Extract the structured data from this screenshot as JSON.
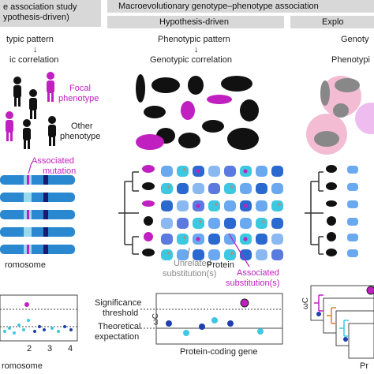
{
  "headers": {
    "left_line1": "e association study",
    "left_line2": "ypothesis-driven)",
    "macro": "Macroevolutionary genotype–phenotype association",
    "hypothesis": "Hypothesis-driven",
    "exploratory": "Explo"
  },
  "left_panel": {
    "pattern": "typic pattern",
    "arrow": "↓",
    "correlation": "ic correlation",
    "focal_line1": "Focal",
    "focal_line2": "phenotype",
    "other_line1": "Other",
    "other_line2": "phenotype",
    "assoc_line1": "Associated",
    "assoc_line2": "mutation",
    "chromosome": "romosome",
    "manhattan_axis": "romosome",
    "manhattan_ticks": [
      "2",
      "3",
      "4"
    ]
  },
  "middle_panel": {
    "pattern": "Phenotypic pattern",
    "arrow": "↓",
    "correlation": "Genotypic correlation",
    "unrelated_line1": "Unrelated",
    "unrelated_line2": "substitution(s)",
    "protein": "Protein",
    "associated_line1": "Associated",
    "associated_line2": "substitution(s)",
    "significance_line1": "Significance",
    "significance_line2": "threshold",
    "theoretical_line1": "Theoretical",
    "theoretical_line2": "expectation",
    "omega": "ωC",
    "axis_label": "Protein-coding gene"
  },
  "right_panel": {
    "genotype": "Genoty",
    "phenotype": "Phenotypi",
    "omega": "ωC",
    "axis_label": "Pr"
  },
  "colors": {
    "magenta": "#c020c0",
    "cyan": "#3cc8e0",
    "blue": "#1f3fb0",
    "navy": "#1a1a6e",
    "header_gray": "#d8d8d8",
    "pink_highlight": "#f0a0c0"
  }
}
